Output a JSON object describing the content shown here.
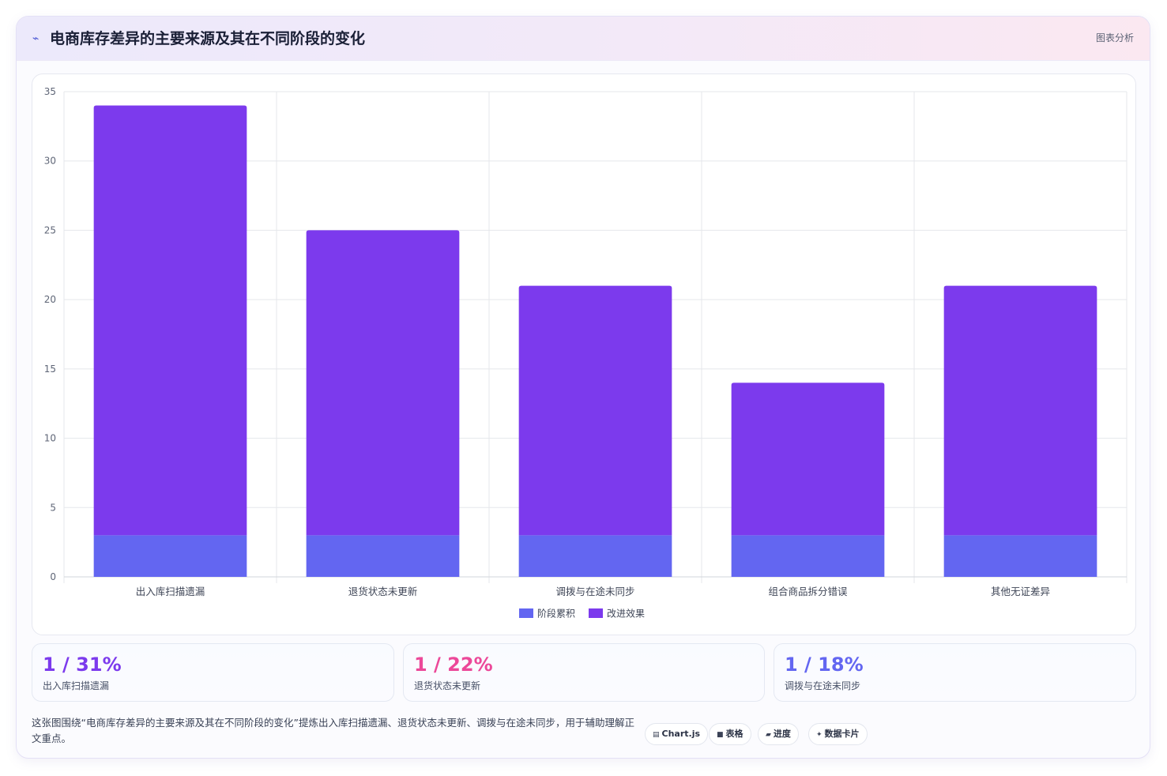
{
  "header": {
    "title": "电商库存差异的主要来源及其在不同阶段的变化",
    "tag": "图表分析"
  },
  "chart_data": {
    "type": "bar",
    "stacked": true,
    "categories": [
      "出入库扫描遗漏",
      "退货状态未更新",
      "调拨与在途未同步",
      "组合商品拆分错误",
      "其他无证差异"
    ],
    "series": [
      {
        "name": "阶段累积",
        "color": "#6366f1",
        "values": [
          3,
          3,
          3,
          3,
          3
        ]
      },
      {
        "name": "改进效果",
        "color": "#7c3aed",
        "values": [
          31,
          22,
          18,
          11,
          18
        ]
      }
    ],
    "ylim": [
      0,
      35
    ],
    "yticks": [
      0,
      5,
      10,
      15,
      20,
      25,
      30,
      35
    ],
    "grid": true,
    "legend": "bottom"
  },
  "kpis": [
    {
      "value": "1 / 31%",
      "label": "出入库扫描遗漏",
      "color": "#7c3aed"
    },
    {
      "value": "1 / 22%",
      "label": "退货状态未更新",
      "color": "#ec4899"
    },
    {
      "value": "1 / 18%",
      "label": "调拨与在途未同步",
      "color": "#6366f1"
    }
  ],
  "note": "这张图围绕“电商库存差异的主要来源及其在不同阶段的变化”提炼出入库扫描遗漏、退货状态未更新、调拨与在途未同步，用于辅助理解正文重点。",
  "chips": [
    {
      "icon": "▤",
      "icon_name": "chart-icon",
      "label": "Chart.js"
    },
    {
      "icon": "■",
      "icon_name": "table-icon",
      "label": "表格"
    },
    {
      "icon": "▰",
      "icon_name": "progress-icon",
      "label": "进度"
    },
    {
      "icon": "✦",
      "icon_name": "sparkle-icon",
      "label": "数据卡片"
    }
  ]
}
